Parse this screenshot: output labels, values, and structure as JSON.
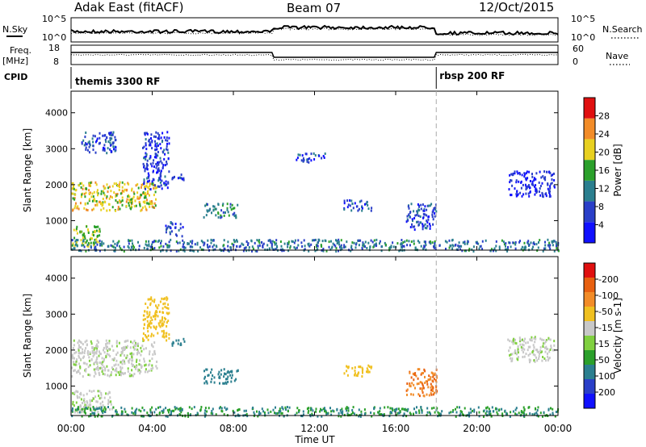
{
  "header": {
    "site": "Adak East (fitACF)",
    "beam": "Beam 07",
    "date": "12/Oct/2015"
  },
  "strip_labels": {
    "nsky": "N.Sky",
    "nsearch": "N.Search",
    "freq": "Freq.",
    "freq_unit": "[MHz]",
    "nave": "Nave",
    "cpid": "CPID",
    "sky_tick_top": "10^5",
    "sky_tick_bottom": "10^0",
    "search_tick_top": "10^5",
    "search_tick_bottom": "10^0",
    "freq_tick_top": "18",
    "freq_tick_bottom": "8",
    "nave_tick_top": "60",
    "nave_tick_bottom": "0"
  },
  "cpid_modes": [
    {
      "label": "themis 3300 RF",
      "start_hour": 0,
      "end_hour": 18
    },
    {
      "label": "rbsp 200 RF",
      "start_hour": 18,
      "end_hour": 24
    }
  ],
  "colors": {
    "frame": "#000000",
    "mode_divider": "#aaaaaa"
  },
  "chart_data": [
    {
      "type": "heatmap",
      "name": "power",
      "xlabel": "",
      "ylabel": "Slant Range [km]",
      "xlim": [
        0,
        24
      ],
      "ylim": [
        180,
        4600
      ],
      "yticks": [
        1000,
        2000,
        3000,
        4000
      ],
      "colorbar": {
        "label": "Power [dB]",
        "ticks": [
          "4",
          "8",
          "12",
          "16",
          "20",
          "24",
          "28"
        ],
        "range": [
          0,
          30
        ],
        "colors": [
          "#1010ff",
          "#2a3fc8",
          "#2b7f8f",
          "#2ba02b",
          "#e8d020",
          "#f28c28",
          "#e01010"
        ]
      },
      "echo_regions": [
        {
          "start_hour": 0.0,
          "end_hour": 4.2,
          "range_low": 1300,
          "range_high": 2100,
          "level": 18
        },
        {
          "start_hour": 0.5,
          "end_hour": 2.2,
          "range_low": 2900,
          "range_high": 3500,
          "level": 6
        },
        {
          "start_hour": 0.0,
          "end_hour": 1.5,
          "range_low": 300,
          "range_high": 900,
          "level": 16
        },
        {
          "start_hour": 3.5,
          "end_hour": 4.8,
          "range_low": 1900,
          "range_high": 3500,
          "level": 5
        },
        {
          "start_hour": 4.6,
          "end_hour": 5.5,
          "range_low": 600,
          "range_high": 1000,
          "level": 7
        },
        {
          "start_hour": 4.9,
          "end_hour": 5.7,
          "range_low": 2150,
          "range_high": 2350,
          "level": 6
        },
        {
          "start_hour": 6.5,
          "end_hour": 8.2,
          "range_low": 1100,
          "range_high": 1500,
          "level": 10
        },
        {
          "start_hour": 11.0,
          "end_hour": 12.5,
          "range_low": 2650,
          "range_high": 2900,
          "level": 6
        },
        {
          "start_hour": 13.4,
          "end_hour": 14.8,
          "range_low": 1300,
          "range_high": 1600,
          "level": 6
        },
        {
          "start_hour": 16.5,
          "end_hour": 18.0,
          "range_low": 750,
          "range_high": 1500,
          "level": 6
        },
        {
          "start_hour": 21.5,
          "end_hour": 23.8,
          "range_low": 1700,
          "range_high": 2400,
          "level": 4
        },
        {
          "start_hour": 0.0,
          "end_hour": 24.0,
          "range_low": 180,
          "range_high": 500,
          "level": 9
        }
      ]
    },
    {
      "type": "heatmap",
      "name": "velocity",
      "xlabel": "Time UT",
      "ylabel": "Slant Range [km]",
      "xlim": [
        0,
        24
      ],
      "ylim": [
        180,
        4600
      ],
      "yticks": [
        1000,
        2000,
        3000,
        4000
      ],
      "xticks": [
        "00:00",
        "04:00",
        "08:00",
        "12:00",
        "16:00",
        "20:00",
        "00:00"
      ],
      "colorbar": {
        "label": "Velocity [m s-1]",
        "ticks": [
          "200",
          "100",
          "50",
          "15",
          "-15",
          "-50",
          "-100",
          "-200"
        ],
        "colors": [
          "#1010ff",
          "#2a3fc8",
          "#2b7f8f",
          "#2ba02b",
          "#80d040",
          "#c8c8c8",
          "#f0c020",
          "#f28c28",
          "#e86010",
          "#e01010"
        ]
      },
      "echo_regions": [
        {
          "start_hour": 0.0,
          "end_hour": 4.2,
          "range_low": 1300,
          "range_high": 2300,
          "velocity": 0
        },
        {
          "start_hour": 0.0,
          "end_hour": 2.0,
          "range_low": 300,
          "range_high": 900,
          "velocity": 0
        },
        {
          "start_hour": 3.5,
          "end_hour": 4.8,
          "range_low": 2300,
          "range_high": 3500,
          "velocity": -30
        },
        {
          "start_hour": 4.9,
          "end_hour": 5.7,
          "range_low": 2150,
          "range_high": 2350,
          "velocity": 60
        },
        {
          "start_hour": 6.5,
          "end_hour": 8.2,
          "range_low": 1100,
          "range_high": 1500,
          "velocity": 60
        },
        {
          "start_hour": 13.4,
          "end_hour": 14.8,
          "range_low": 1300,
          "range_high": 1600,
          "velocity": -30
        },
        {
          "start_hour": 16.5,
          "end_hour": 18.0,
          "range_low": 750,
          "range_high": 1500,
          "velocity": -100
        },
        {
          "start_hour": 21.5,
          "end_hour": 23.8,
          "range_low": 1700,
          "range_high": 2400,
          "velocity": 0
        },
        {
          "start_hour": 0.0,
          "end_hour": 24.0,
          "range_low": 180,
          "range_high": 450,
          "velocity": 30
        }
      ]
    }
  ]
}
